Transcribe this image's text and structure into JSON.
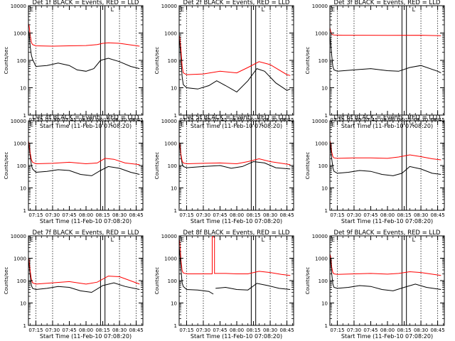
{
  "figure": {
    "axis_color": "#000000",
    "black_color": "#000000",
    "red_color": "#ff0000"
  },
  "chart_data": [
    {
      "type": "line",
      "detector": "1f",
      "title": "Det 1f BLACK = Events, RED = LLD",
      "xlabel": "Start Time (11-Feb-10 07:08:20)",
      "ylabel": "Counts/sec",
      "xlim": [
        "07:08:20",
        "08:51:00"
      ],
      "x_tick_labels": [
        "07:15",
        "07:30",
        "07:45",
        "08:00",
        "08:15",
        "08:30",
        "08:45"
      ],
      "ylim": [
        1,
        10000
      ],
      "y_scale": "log",
      "y_tick_labels": [
        "1",
        "10",
        "100",
        "1000",
        "10000"
      ],
      "dotted_lines": [
        "07:15",
        "07:30",
        "08:30",
        "08:45"
      ],
      "solid_lines": [
        "08:13",
        "08:17"
      ],
      "marker_labels": [
        "E",
        "L"
      ],
      "series": [
        {
          "color": "black",
          "x": [
            "07:08",
            "07:09",
            "07:10",
            "07:11",
            "07:12",
            "07:15",
            "07:25",
            "07:35",
            "07:45",
            "07:52",
            "08:00",
            "08:07",
            "08:13",
            "08:20",
            "08:30",
            "08:40",
            "08:48"
          ],
          "values": [
            1500,
            900,
            300,
            150,
            110,
            60,
            65,
            80,
            65,
            45,
            40,
            50,
            100,
            120,
            90,
            60,
            50
          ]
        },
        {
          "color": "red",
          "x": [
            "07:08",
            "07:09",
            "07:10",
            "07:11",
            "07:12",
            "07:15",
            "07:30",
            "07:45",
            "08:00",
            "08:10",
            "08:15",
            "08:20",
            "08:30",
            "08:48"
          ],
          "values": [
            2500,
            1800,
            800,
            450,
            380,
            340,
            330,
            340,
            350,
            380,
            420,
            440,
            420,
            330
          ]
        }
      ]
    },
    {
      "type": "line",
      "detector": "2f",
      "title": "Det 2f BLACK = Events, RED = LLD",
      "xlabel": "Start Time (11-Feb-10 07:08:20)",
      "ylabel": "Counts/sec",
      "xlim": [
        "07:08:20",
        "08:51:00"
      ],
      "x_tick_labels": [
        "07:15",
        "07:30",
        "07:45",
        "08:00",
        "08:15",
        "08:30",
        "08:45"
      ],
      "ylim": [
        1,
        10000
      ],
      "y_scale": "log",
      "y_tick_labels": [
        "1",
        "10",
        "100",
        "1000",
        "10000"
      ],
      "dotted_lines": [
        "07:15",
        "07:30",
        "08:30",
        "08:45"
      ],
      "solid_lines": [
        "08:13",
        "08:17"
      ],
      "marker_labels": [
        "E",
        "L"
      ],
      "series": [
        {
          "color": "black",
          "x": [
            "07:08",
            "07:09",
            "07:10",
            "07:11",
            "07:12",
            "07:15",
            "07:25",
            "07:35",
            "07:42",
            "07:50",
            "08:00",
            "08:10",
            "08:18",
            "08:25",
            "08:35",
            "08:45",
            "08:48"
          ],
          "values": [
            800,
            400,
            100,
            25,
            13,
            10,
            9,
            12,
            18,
            12,
            7,
            18,
            50,
            40,
            15,
            8,
            9
          ]
        },
        {
          "color": "red",
          "x": [
            "07:08",
            "07:09",
            "07:10",
            "07:11",
            "07:12",
            "07:15",
            "07:30",
            "07:45",
            "08:00",
            "08:10",
            "08:20",
            "08:30",
            "08:45",
            "08:48"
          ],
          "values": [
            900,
            700,
            250,
            60,
            35,
            30,
            32,
            40,
            35,
            55,
            90,
            70,
            30,
            28
          ]
        }
      ]
    },
    {
      "type": "line",
      "detector": "3f",
      "title": "Det 3f BLACK = Events, RED = LLD",
      "xlabel": "Start Time (11-Feb-10 07:08:20)",
      "ylabel": "Counts/sec",
      "xlim": [
        "07:08:20",
        "08:51:00"
      ],
      "x_tick_labels": [
        "07:15",
        "07:30",
        "07:45",
        "08:00",
        "08:15",
        "08:30",
        "08:45"
      ],
      "ylim": [
        1,
        10000
      ],
      "y_scale": "log",
      "y_tick_labels": [
        "1",
        "10",
        "100",
        "1000",
        "10000"
      ],
      "dotted_lines": [
        "07:15",
        "07:30",
        "08:30",
        "08:45"
      ],
      "solid_lines": [
        "08:13",
        "08:17"
      ],
      "marker_labels": [
        "E",
        "L"
      ],
      "series": [
        {
          "color": "black",
          "x": [
            "07:08",
            "07:09",
            "07:10",
            "07:11",
            "07:12",
            "07:15",
            "07:30",
            "07:45",
            "08:00",
            "08:10",
            "08:20",
            "08:30",
            "08:45",
            "08:48"
          ],
          "values": [
            1000,
            500,
            150,
            60,
            45,
            40,
            45,
            50,
            42,
            40,
            55,
            65,
            40,
            35
          ]
        },
        {
          "color": "red",
          "x": [
            "07:08",
            "07:09",
            "07:10",
            "07:12",
            "07:20",
            "08:00",
            "08:30",
            "08:48"
          ],
          "values": [
            1800,
            1200,
            900,
            850,
            830,
            820,
            830,
            800
          ]
        }
      ]
    },
    {
      "type": "line",
      "detector": "4f",
      "title": "Det 4f BLACK = Events, RED = LLD",
      "xlabel": "Start Time (11-Feb-10 07:08:20)",
      "ylabel": "Counts/sec",
      "xlim": [
        "07:08:20",
        "08:51:00"
      ],
      "x_tick_labels": [
        "07:15",
        "07:30",
        "07:45",
        "08:00",
        "08:15",
        "08:30",
        "08:45"
      ],
      "ylim": [
        1,
        10000
      ],
      "y_scale": "log",
      "y_tick_labels": [
        "1",
        "10",
        "100",
        "1000",
        "10000"
      ],
      "dotted_lines": [
        "07:15",
        "07:30",
        "08:30",
        "08:45"
      ],
      "solid_lines": [
        "08:13",
        "08:17"
      ],
      "marker_labels": [
        "E",
        "L"
      ],
      "series": [
        {
          "color": "black",
          "x": [
            "07:08",
            "07:09",
            "07:10",
            "07:11",
            "07:12",
            "07:15",
            "07:25",
            "07:35",
            "07:45",
            "07:55",
            "08:05",
            "08:13",
            "08:20",
            "08:30",
            "08:40",
            "08:48"
          ],
          "values": [
            1300,
            700,
            250,
            100,
            70,
            50,
            55,
            65,
            60,
            40,
            35,
            60,
            90,
            75,
            50,
            40
          ]
        },
        {
          "color": "red",
          "x": [
            "07:08",
            "07:09",
            "07:10",
            "07:11",
            "07:12",
            "07:15",
            "07:30",
            "07:45",
            "08:00",
            "08:10",
            "08:17",
            "08:25",
            "08:35",
            "08:48"
          ],
          "values": [
            1500,
            900,
            350,
            180,
            140,
            120,
            125,
            140,
            120,
            130,
            210,
            190,
            130,
            110
          ]
        }
      ]
    },
    {
      "type": "line",
      "detector": "5f",
      "title": "Det 5f BLACK = Events, RED = LLD",
      "xlabel": "Start Time (11-Feb-10 07:08:20)",
      "ylabel": "Counts/sec",
      "xlim": [
        "07:08:20",
        "08:51:00"
      ],
      "x_tick_labels": [
        "07:15",
        "07:30",
        "07:45",
        "08:00",
        "08:15",
        "08:30",
        "08:45"
      ],
      "ylim": [
        1,
        10000
      ],
      "y_scale": "log",
      "y_tick_labels": [
        "1",
        "10",
        "100",
        "1000",
        "10000"
      ],
      "dotted_lines": [
        "07:15",
        "07:30",
        "08:30",
        "08:45"
      ],
      "solid_lines": [
        "08:13",
        "08:17"
      ],
      "marker_labels": [
        "E",
        "L"
      ],
      "series": [
        {
          "color": "black",
          "x": [
            "07:08",
            "07:09",
            "07:10",
            "07:11",
            "07:12",
            "07:15",
            "07:30",
            "07:45",
            "07:55",
            "08:05",
            "08:15",
            "08:25",
            "08:35",
            "08:48"
          ],
          "values": [
            1200,
            700,
            250,
            120,
            90,
            80,
            90,
            100,
            75,
            90,
            150,
            130,
            80,
            70
          ]
        },
        {
          "color": "red",
          "x": [
            "07:08",
            "07:09",
            "07:10",
            "07:11",
            "07:12",
            "07:15",
            "07:30",
            "07:45",
            "08:00",
            "08:10",
            "08:20",
            "08:30",
            "08:48"
          ],
          "values": [
            1200,
            900,
            300,
            160,
            130,
            120,
            125,
            130,
            120,
            150,
            200,
            150,
            110
          ]
        }
      ]
    },
    {
      "type": "line",
      "detector": "6f",
      "title": "Det 6f BLACK = Events, RED = LLD",
      "xlabel": "Start Time (11-Feb-10 07:08:20)",
      "ylabel": "Counts/sec",
      "xlim": [
        "07:08:20",
        "08:51:00"
      ],
      "x_tick_labels": [
        "07:15",
        "07:30",
        "07:45",
        "08:00",
        "08:15",
        "08:30",
        "08:45"
      ],
      "ylim": [
        1,
        10000
      ],
      "y_scale": "log",
      "y_tick_labels": [
        "1",
        "10",
        "100",
        "1000",
        "10000"
      ],
      "dotted_lines": [
        "07:15",
        "07:30",
        "08:30",
        "08:45"
      ],
      "solid_lines": [
        "08:13",
        "08:17"
      ],
      "marker_labels": [
        "E",
        "L"
      ],
      "series": [
        {
          "color": "black",
          "x": [
            "07:08",
            "07:09",
            "07:10",
            "07:11",
            "07:12",
            "07:15",
            "07:25",
            "07:35",
            "07:45",
            "07:55",
            "08:05",
            "08:13",
            "08:20",
            "08:30",
            "08:40",
            "08:48"
          ],
          "values": [
            1400,
            600,
            200,
            80,
            55,
            45,
            50,
            60,
            55,
            40,
            35,
            45,
            90,
            70,
            45,
            40
          ]
        },
        {
          "color": "red",
          "x": [
            "07:08",
            "07:09",
            "07:10",
            "07:11",
            "07:12",
            "07:15",
            "07:30",
            "07:45",
            "08:00",
            "08:10",
            "08:20",
            "08:30",
            "08:40",
            "08:48"
          ],
          "values": [
            1500,
            1000,
            400,
            250,
            220,
            210,
            220,
            220,
            210,
            240,
            300,
            250,
            200,
            180
          ]
        }
      ]
    },
    {
      "type": "line",
      "detector": "7f",
      "title": "Det 7f BLACK = Events, RED = LLD",
      "xlabel": "Start Time (11-Feb-10 07:08:20)",
      "ylabel": "Counts/sec",
      "xlim": [
        "07:08:20",
        "08:51:00"
      ],
      "x_tick_labels": [
        "07:15",
        "07:30",
        "07:45",
        "08:00",
        "08:15",
        "08:30",
        "08:45"
      ],
      "ylim": [
        1,
        10000
      ],
      "y_scale": "log",
      "y_tick_labels": [
        "1",
        "10",
        "100",
        "1000",
        "10000"
      ],
      "dotted_lines": [
        "07:15",
        "07:30",
        "08:30",
        "08:45"
      ],
      "solid_lines": [
        "08:13",
        "08:17"
      ],
      "marker_labels": [
        "E",
        "L"
      ],
      "series": [
        {
          "color": "black",
          "x": [
            "07:08",
            "07:09",
            "07:10",
            "07:11",
            "07:12",
            "07:15",
            "07:25",
            "07:35",
            "07:45",
            "07:55",
            "08:05",
            "08:15",
            "08:25",
            "08:35",
            "08:48"
          ],
          "values": [
            1000,
            500,
            150,
            60,
            45,
            40,
            45,
            55,
            50,
            35,
            30,
            60,
            80,
            55,
            40
          ]
        },
        {
          "color": "red",
          "x": [
            "07:08",
            "07:09",
            "07:10",
            "07:11",
            "07:12",
            "07:15",
            "07:30",
            "07:45",
            "08:00",
            "08:10",
            "08:20",
            "08:30",
            "08:45",
            "08:48"
          ],
          "values": [
            1300,
            800,
            250,
            110,
            80,
            70,
            80,
            90,
            70,
            85,
            160,
            150,
            80,
            70
          ]
        }
      ]
    },
    {
      "type": "line",
      "detector": "8f",
      "title": "Det 8f BLACK = Events, RED = LLD",
      "xlabel": "Start Time (11-Feb-10 07:08:20)",
      "ylabel": "Counts/sec",
      "xlim": [
        "07:08:20",
        "08:51:00"
      ],
      "x_tick_labels": [
        "07:15",
        "07:30",
        "07:45",
        "08:00",
        "08:15",
        "08:30",
        "08:45"
      ],
      "ylim": [
        1,
        10000
      ],
      "y_scale": "log",
      "y_tick_labels": [
        "1",
        "10",
        "100",
        "1000",
        "10000"
      ],
      "dotted_lines": [
        "07:15",
        "07:30",
        "08:30",
        "08:45"
      ],
      "solid_lines": [
        "08:13",
        "08:17"
      ],
      "marker_labels": [
        "E",
        "L"
      ],
      "series": [
        {
          "color": "black",
          "x": [
            "07:08",
            "07:09",
            "07:10",
            "07:11",
            "07:12",
            "07:15",
            "07:25",
            "07:35",
            "07:39",
            "07:39",
            "07:41",
            "07:50",
            "08:00",
            "08:10",
            "08:18",
            "08:28",
            "08:38",
            "08:48"
          ],
          "values": [
            5000,
            1500,
            300,
            80,
            55,
            40,
            38,
            33,
            25,
            null,
            45,
            50,
            40,
            38,
            75,
            60,
            45,
            40
          ]
        },
        {
          "color": "red",
          "x": [
            "07:08",
            "07:09",
            "07:10",
            "07:11",
            "07:12",
            "07:15",
            "07:30",
            "07:38",
            "07:38",
            "07:40",
            "07:40",
            "07:50",
            "08:00",
            "08:10",
            "08:20",
            "08:30",
            "08:40",
            "08:48"
          ],
          "values": [
            9000,
            5000,
            800,
            280,
            220,
            200,
            200,
            200,
            9000,
            9000,
            210,
            210,
            200,
            200,
            260,
            230,
            190,
            170
          ]
        }
      ]
    },
    {
      "type": "line",
      "detector": "9f",
      "title": "Det 9f BLACK = Events, RED = LLD",
      "xlabel": "Start Time (11-Feb-10 07:08:20)",
      "ylabel": "Counts/sec",
      "xlim": [
        "07:08:20",
        "08:51:00"
      ],
      "x_tick_labels": [
        "07:15",
        "07:30",
        "07:45",
        "08:00",
        "08:15",
        "08:30",
        "08:45"
      ],
      "ylim": [
        1,
        10000
      ],
      "y_scale": "log",
      "y_tick_labels": [
        "1",
        "10",
        "100",
        "1000",
        "10000"
      ],
      "dotted_lines": [
        "07:15",
        "07:30",
        "08:30",
        "08:45"
      ],
      "solid_lines": [
        "08:13",
        "08:17"
      ],
      "marker_labels": [
        "E",
        "L"
      ],
      "series": [
        {
          "color": "black",
          "x": [
            "07:08",
            "07:09",
            "07:10",
            "07:11",
            "07:12",
            "07:15",
            "07:25",
            "07:35",
            "07:45",
            "07:55",
            "08:05",
            "08:15",
            "08:25",
            "08:35",
            "08:48"
          ],
          "values": [
            1500,
            700,
            200,
            70,
            50,
            45,
            50,
            60,
            55,
            40,
            35,
            50,
            70,
            50,
            40
          ]
        },
        {
          "color": "red",
          "x": [
            "07:08",
            "07:09",
            "07:10",
            "07:11",
            "07:12",
            "07:15",
            "07:30",
            "07:45",
            "08:00",
            "08:10",
            "08:20",
            "08:30",
            "08:48"
          ],
          "values": [
            1800,
            1200,
            400,
            230,
            200,
            190,
            200,
            210,
            195,
            210,
            250,
            230,
            170
          ]
        }
      ]
    }
  ]
}
